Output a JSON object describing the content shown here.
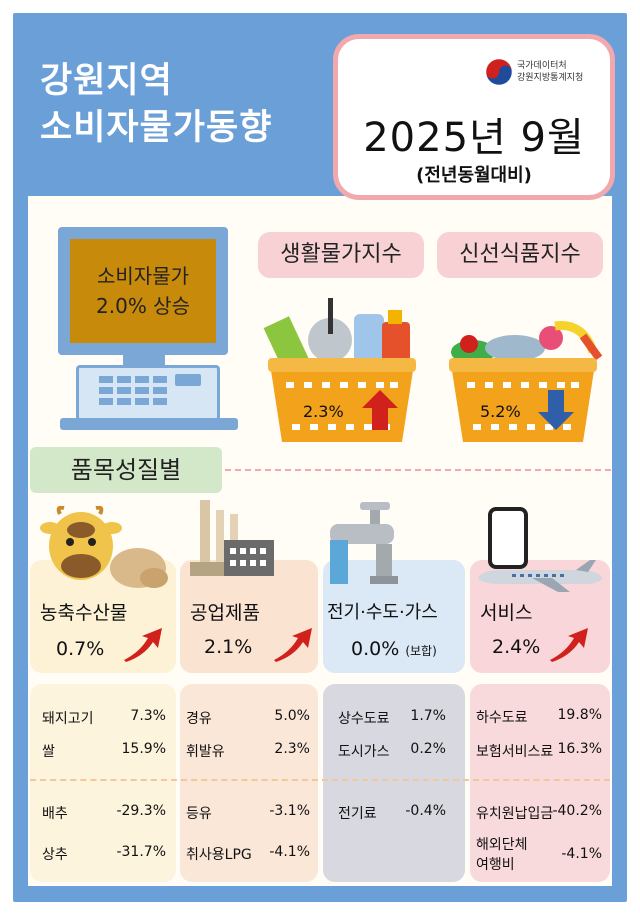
{
  "header": {
    "title_line1": "강원지역",
    "title_line2": "소비자물가동향",
    "logo_line1": "국가데이터처",
    "logo_line2": "강원지방통계지청",
    "period": "2025년 9월",
    "basis": "(전년동월대비)"
  },
  "cpi": {
    "line1": "소비자물가",
    "line2": "2.0% 상승"
  },
  "indices": [
    {
      "label": "생활물가지수",
      "value": "2.3%",
      "direction": "up"
    },
    {
      "label": "신선식품지수",
      "value": "5.2%",
      "direction": "down"
    }
  ],
  "section_label": "품목성질별",
  "categories": [
    {
      "name": "농축수산물",
      "value": "0.7%",
      "note": ""
    },
    {
      "name": "공업제품",
      "value": "2.1%",
      "note": ""
    },
    {
      "name": "전기·수도·가스",
      "value": "0.0%",
      "note": "(보합)"
    },
    {
      "name": "서비스",
      "value": "2.4%",
      "note": ""
    }
  ],
  "details": [
    {
      "up": [
        {
          "item": "돼지고기",
          "value": "7.3%"
        },
        {
          "item": "쌀",
          "value": "15.9%"
        }
      ],
      "down": [
        {
          "item": "배추",
          "value": "-29.3%"
        },
        {
          "item": "상추",
          "value": "-31.7%"
        }
      ]
    },
    {
      "up": [
        {
          "item": "경유",
          "value": "5.0%"
        },
        {
          "item": "휘발유",
          "value": "2.3%"
        }
      ],
      "down": [
        {
          "item": "등유",
          "value": "-3.1%"
        },
        {
          "item": "취사용LPG",
          "value": "-4.1%"
        }
      ]
    },
    {
      "up": [
        {
          "item": "상수도료",
          "value": "1.7%"
        },
        {
          "item": "도시가스",
          "value": "0.2%"
        }
      ],
      "down": [
        {
          "item": "전기료",
          "value": "-0.4%"
        }
      ]
    },
    {
      "up": [
        {
          "item": "하수도료",
          "value": "19.8%"
        },
        {
          "item": "보험서비스료",
          "value": "16.3%"
        }
      ],
      "down": [
        {
          "item": "유치원납입금",
          "value": "-40.2%"
        },
        {
          "item_line1": "해외단체",
          "item_line2": "여행비",
          "value": "-4.1%"
        }
      ]
    }
  ],
  "colors": {
    "frame_blue": "#6a9fd8",
    "pink": "#f7d1d3",
    "pink_border": "#f2a9ad",
    "green_tag": "#d2e8c8",
    "up_arrow": "#d0211c",
    "down_arrow": "#2f5fa8",
    "basket_orange": "#f3a21c"
  }
}
